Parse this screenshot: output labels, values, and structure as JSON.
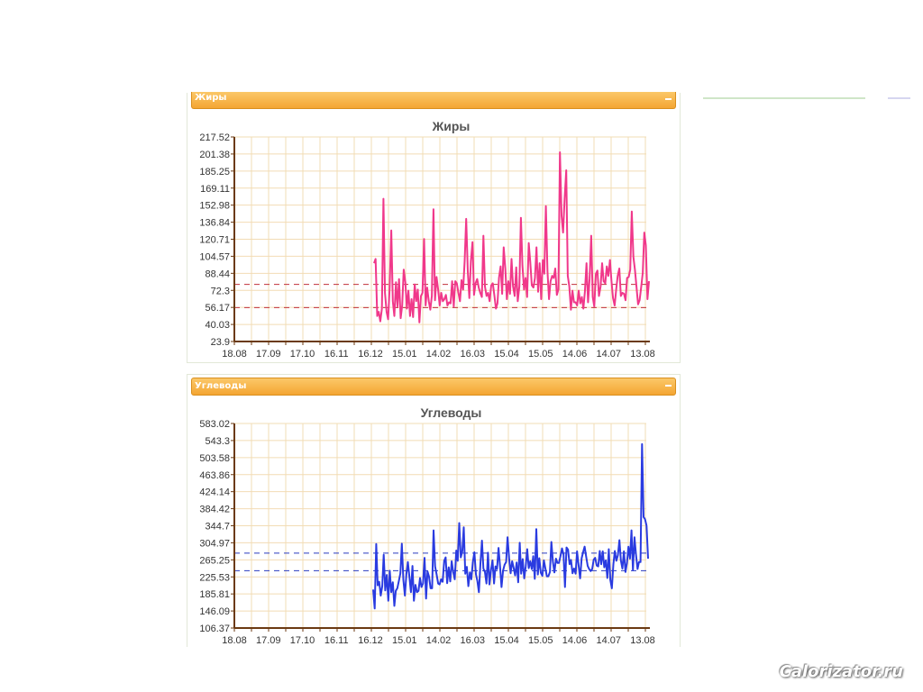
{
  "panels": {
    "fat": {
      "title": "Жиры"
    },
    "carb": {
      "title": "Углеводы"
    }
  },
  "watermark": "Calorizator.ru",
  "icons": {
    "collapse": "minus-icon"
  },
  "colors": {
    "header": "#f4a532",
    "fat_line": "#f0388a",
    "carb_line": "#2a3be0",
    "grid": "#f2dcb4",
    "axis": "#6b3a12"
  },
  "chart_data": [
    {
      "type": "line",
      "title": "Жиры",
      "y_ticks": [
        "23.9",
        "40.03",
        "56.17",
        "72.3",
        "88.44",
        "104.57",
        "120.71",
        "136.84",
        "152.98",
        "169.11",
        "185.25",
        "201.38",
        "217.52"
      ],
      "ylim": [
        23.9,
        217.52
      ],
      "x_ticks": [
        "18.08",
        "17.09",
        "17.10",
        "16.11",
        "16.12",
        "15.01",
        "14.02",
        "16.03",
        "15.04",
        "15.05",
        "14.06",
        "14.07",
        "13.08"
      ],
      "reference_lines": [
        78,
        56
      ],
      "grid": true,
      "series": [
        {
          "color": "#f0388a",
          "values": [
            98,
            102,
            48,
            52,
            43,
            55,
            159,
            70,
            52,
            45,
            75,
            129,
            62,
            48,
            80,
            57,
            83,
            46,
            58,
            92,
            80,
            55,
            72,
            48,
            64,
            47,
            78,
            62,
            73,
            42,
            67,
            70,
            121,
            58,
            75,
            62,
            54,
            67,
            149,
            63,
            85,
            73,
            58,
            70,
            62,
            64,
            68,
            58,
            61,
            60,
            81,
            57,
            81,
            79,
            70,
            62,
            82,
            73,
            100,
            140,
            90,
            65,
            100,
            118,
            68,
            79,
            83,
            75,
            70,
            66,
            124,
            76,
            67,
            70,
            62,
            77,
            79,
            68,
            55,
            60,
            84,
            95,
            69,
            113,
            93,
            64,
            81,
            69,
            102,
            76,
            67,
            94,
            62,
            76,
            141,
            96,
            73,
            84,
            66,
            117,
            99,
            77,
            75,
            84,
            113,
            71,
            98,
            64,
            101,
            88,
            152,
            90,
            64,
            81,
            86,
            84,
            93,
            68,
            73,
            203,
            143,
            127,
            159,
            186,
            86,
            76,
            54,
            72,
            61,
            61,
            58,
            72,
            60,
            66,
            55,
            71,
            98,
            61,
            83,
            124,
            66,
            57,
            88,
            91,
            67,
            76,
            98,
            81,
            79,
            95,
            86,
            101,
            81,
            65,
            58,
            73,
            86,
            93,
            67,
            70,
            69,
            63,
            84,
            85,
            92,
            147,
            104,
            92,
            76,
            59,
            63,
            75,
            89,
            127,
            115,
            64,
            81
          ]
        }
      ]
    },
    {
      "type": "line",
      "title": "Углеводы",
      "y_ticks": [
        "106.37",
        "146.09",
        "185.81",
        "225.53",
        "265.25",
        "304.97",
        "344.7",
        "384.42",
        "424.14",
        "463.86",
        "503.58",
        "543.3",
        "583.02"
      ],
      "ylim": [
        106.37,
        583.02
      ],
      "x_ticks": [
        "18.08",
        "17.09",
        "17.10",
        "16.11",
        "16.12",
        "15.01",
        "14.02",
        "16.03",
        "15.04",
        "15.05",
        "14.06",
        "14.07",
        "13.08"
      ],
      "reference_lines": [
        281,
        240
      ],
      "grid": true,
      "series": [
        {
          "color": "#2a3be0",
          "values": [
            196,
            152,
            302,
            206,
            214,
            182,
            204,
            277,
            194,
            230,
            170,
            240,
            190,
            213,
            158,
            193,
            199,
            216,
            234,
            303,
            219,
            182,
            233,
            260,
            226,
            190,
            251,
            170,
            207,
            190,
            193,
            223,
            202,
            210,
            270,
            175,
            238,
            226,
            199,
            199,
            334,
            250,
            231,
            210,
            208,
            220,
            214,
            263,
            271,
            211,
            248,
            215,
            262,
            237,
            220,
            287,
            263,
            351,
            271,
            285,
            341,
            233,
            249,
            204,
            236,
            220,
            260,
            283,
            232,
            216,
            190,
            256,
            310,
            245,
            237,
            210,
            282,
            208,
            241,
            264,
            210,
            250,
            244,
            293,
            249,
            202,
            240,
            254,
            260,
            318,
            270,
            234,
            262,
            246,
            229,
            259,
            213,
            305,
            233,
            267,
            222,
            251,
            290,
            246,
            262,
            244,
            274,
            221,
            337,
            231,
            269,
            235,
            228,
            264,
            246,
            227,
            227,
            237,
            307,
            261,
            236,
            268,
            258,
            258,
            274,
            292,
            278,
            202,
            294,
            289,
            255,
            265,
            234,
            245,
            233,
            285,
            253,
            222,
            269,
            283,
            296,
            273,
            251,
            244,
            239,
            244,
            266,
            270,
            252,
            250,
            286,
            255,
            285,
            248,
            264,
            223,
            290,
            219,
            199,
            255,
            286,
            263,
            276,
            311,
            264,
            245,
            285,
            237,
            257,
            296,
            268,
            334,
            241,
            318,
            277,
            244,
            260,
            260,
            535,
            365,
            360,
            345,
            268
          ]
        }
      ]
    }
  ]
}
